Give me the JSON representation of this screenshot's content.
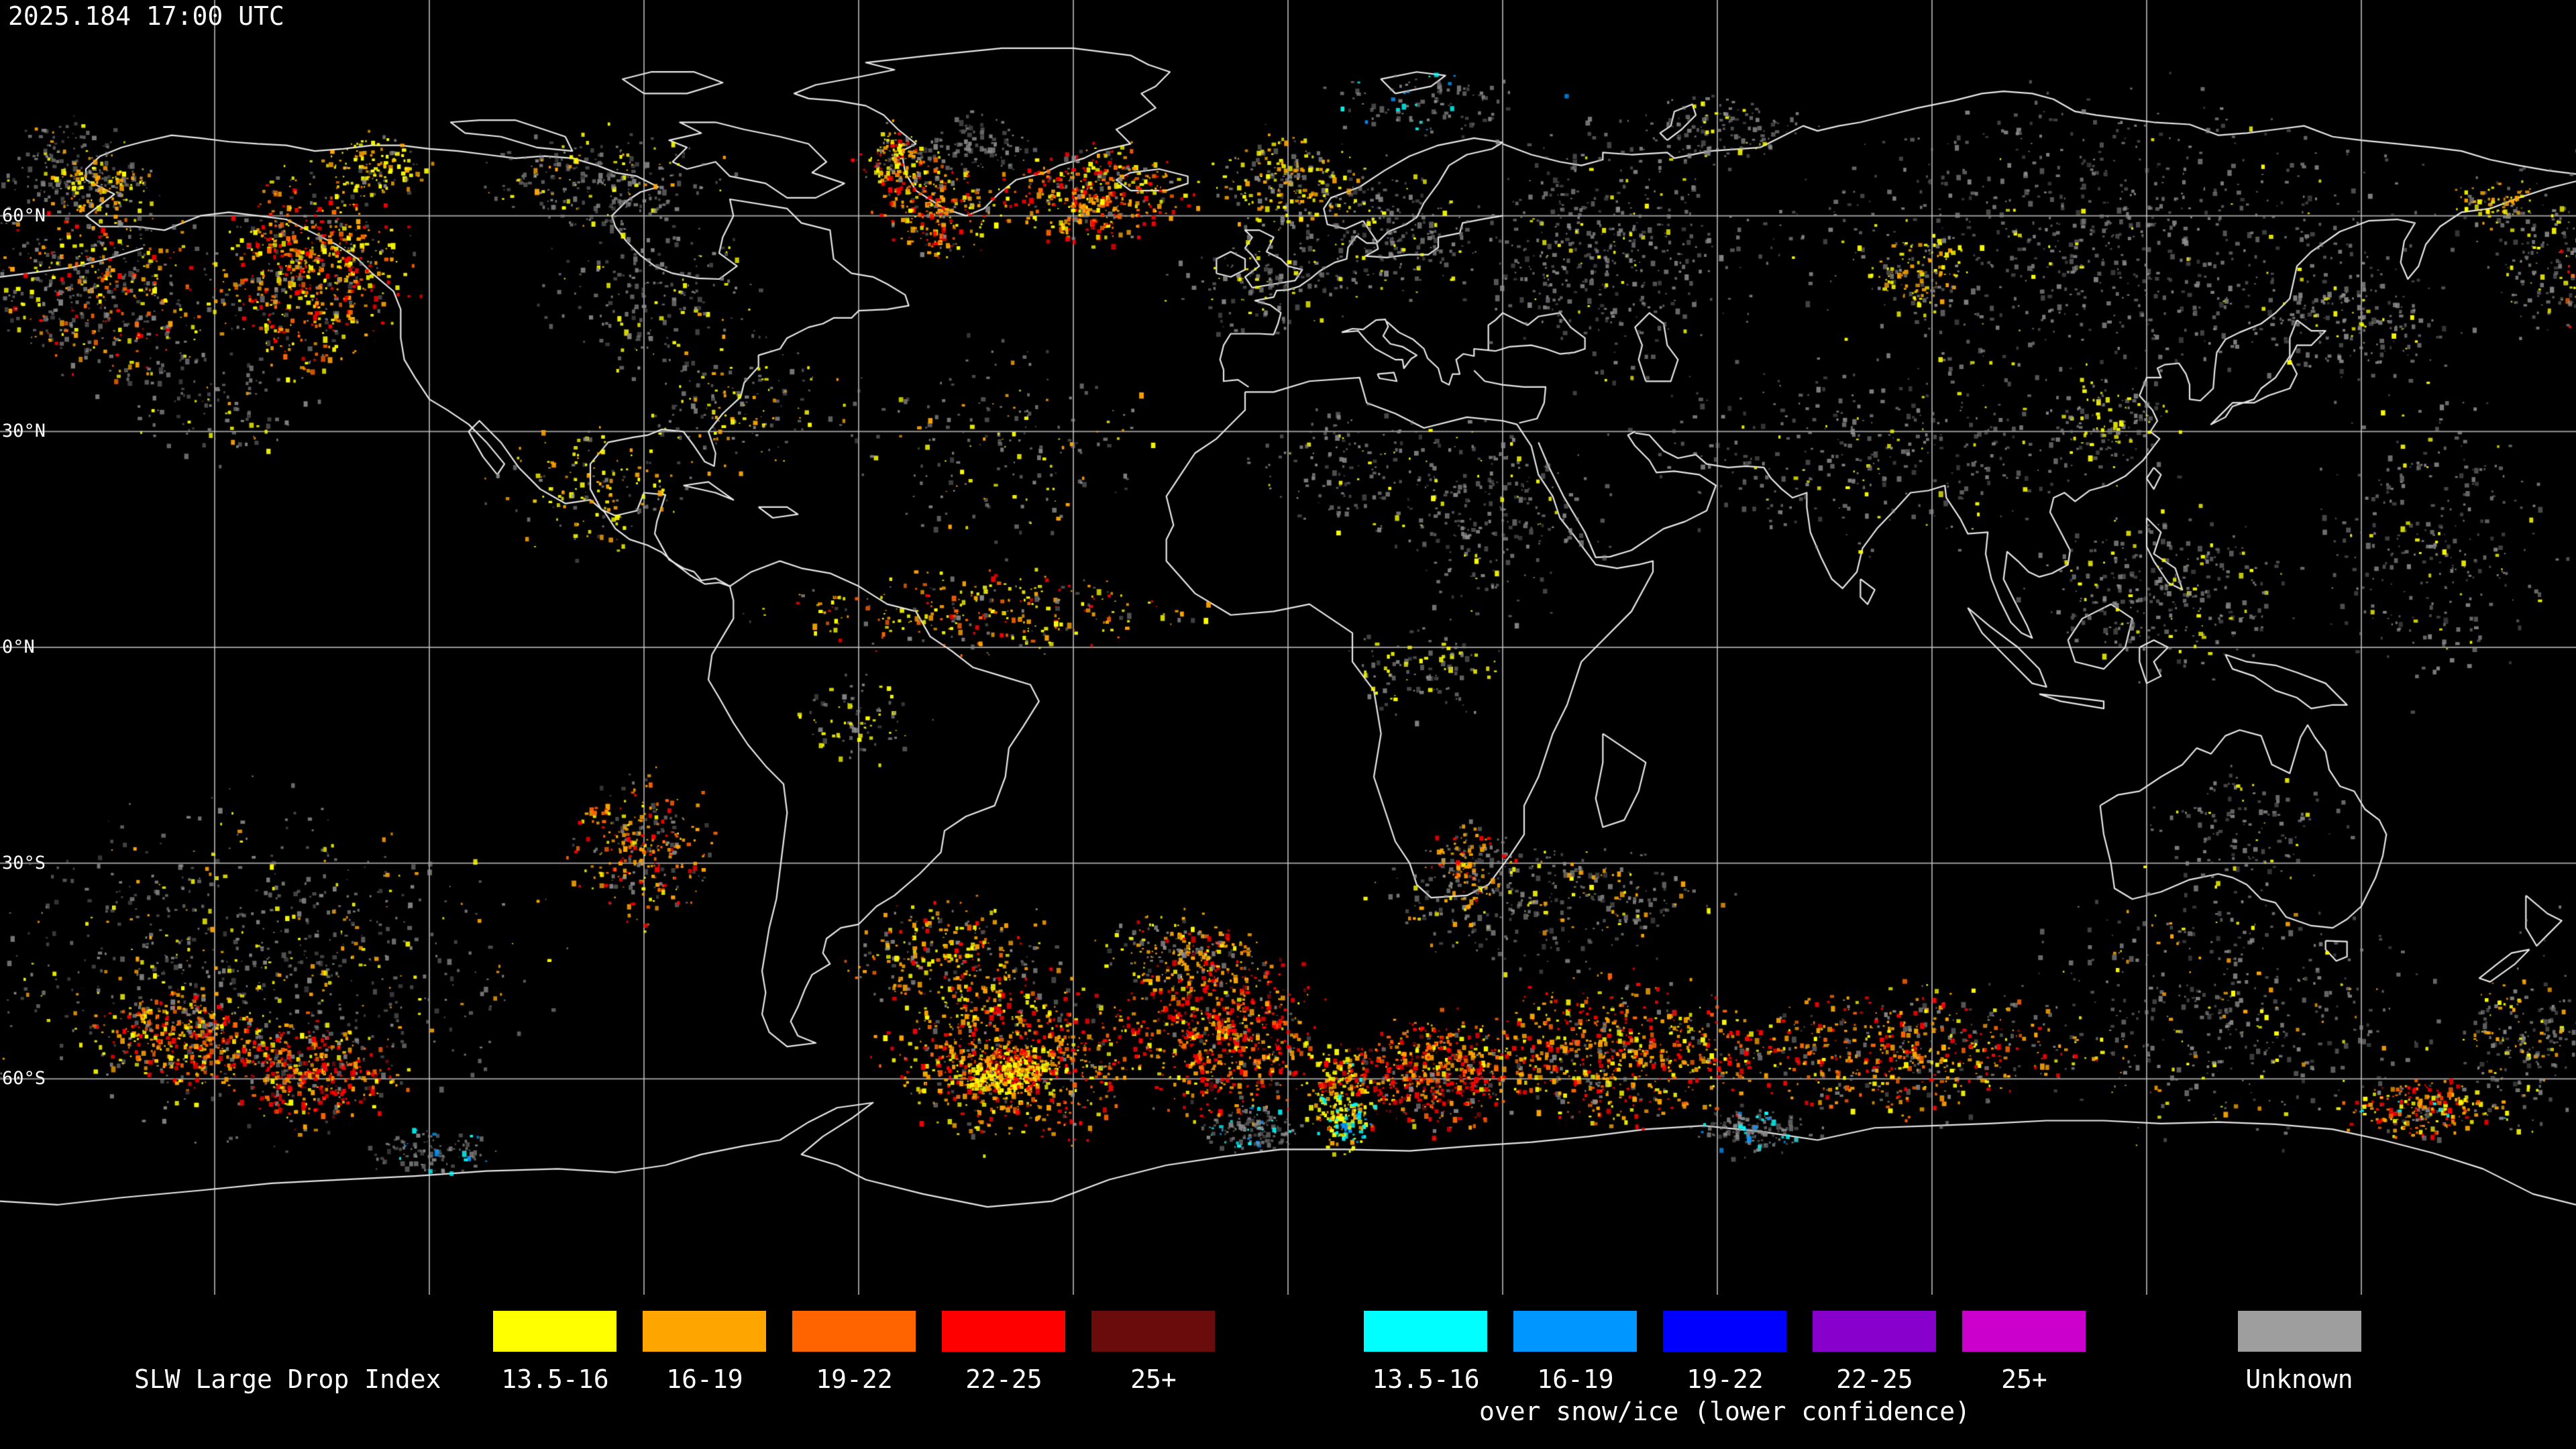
{
  "header": {
    "timestamp": "2025.184 17:00 UTC"
  },
  "map": {
    "background": "#000000",
    "grid": {
      "color": "#c8c8c8",
      "lon_step": 30,
      "lat_step": 30
    },
    "coast_color": "#e8e8e8",
    "lat_labels": [
      {
        "text": "60°N",
        "lat": 60
      },
      {
        "text": "30°N",
        "lat": 30
      },
      {
        "text": "0°N",
        "lat": 0
      },
      {
        "text": "30°S",
        "lat": -30
      },
      {
        "text": "60°S",
        "lat": -60
      }
    ],
    "clusters": [
      {
        "lon": -166,
        "lat": 50,
        "rx": 14,
        "ry": 11,
        "n": 520,
        "mix": {
          "gray": 50,
          "orange": 15,
          "dkorange": 10,
          "red": 10,
          "yellow": 15
        }
      },
      {
        "lon": -137,
        "lat": 53,
        "rx": 12,
        "ry": 12,
        "n": 680,
        "mix": {
          "yellow": 24,
          "orange": 22,
          "dkorange": 14,
          "red": 18,
          "gray": 22
        }
      },
      {
        "lon": -128,
        "lat": 67,
        "rx": 7,
        "ry": 4,
        "n": 130,
        "mix": {
          "yellow": 50,
          "orange": 30,
          "gray": 20
        }
      },
      {
        "lon": -171,
        "lat": 67,
        "rx": 8,
        "ry": 6,
        "n": 140,
        "mix": {
          "gray": 80,
          "yellow": 10,
          "orange": 10
        }
      },
      {
        "lon": -166,
        "lat": 64,
        "rx": 7,
        "ry": 4,
        "n": 150,
        "mix": {
          "orange": 35,
          "yellow": 30,
          "gray": 35
        }
      },
      {
        "lon": -96,
        "lat": 65,
        "rx": 15,
        "ry": 6,
        "n": 260,
        "mix": {
          "gray": 78,
          "yellow": 12,
          "orange": 10
        }
      },
      {
        "lon": -90,
        "lat": 50,
        "rx": 13,
        "ry": 10,
        "n": 200,
        "mix": {
          "gray": 82,
          "yellow": 18
        }
      },
      {
        "lon": -77,
        "lat": 35,
        "rx": 15,
        "ry": 9,
        "n": 170,
        "mix": {
          "gray": 60,
          "yellow": 22,
          "orange": 18
        }
      },
      {
        "lon": -97,
        "lat": 22,
        "rx": 12,
        "ry": 8,
        "n": 170,
        "mix": {
          "yellow": 40,
          "orange": 30,
          "gray": 30
        }
      },
      {
        "lon": -150,
        "lat": 35,
        "rx": 14,
        "ry": 8,
        "n": 130,
        "mix": {
          "gray": 80,
          "yellow": 12,
          "orange": 8
        }
      },
      {
        "lon": -44,
        "lat": 70,
        "rx": 8,
        "ry": 4,
        "n": 100,
        "mix": {
          "gray": 100
        }
      },
      {
        "lon": -55,
        "lat": 68,
        "rx": 5,
        "ry": 4,
        "n": 160,
        "mix": {
          "orange": 30,
          "red": 20,
          "yellow": 20,
          "gray": 30
        }
      },
      {
        "lon": -49,
        "lat": 61,
        "rx": 7,
        "ry": 6,
        "n": 260,
        "mix": {
          "orange": 28,
          "dkorange": 14,
          "red": 24,
          "yellow": 16,
          "gray": 18
        }
      },
      {
        "lon": -27,
        "lat": 63,
        "rx": 11,
        "ry": 6,
        "n": 430,
        "mix": {
          "orange": 25,
          "dkorange": 16,
          "red": 27,
          "yellow": 17,
          "gray": 15
        }
      },
      {
        "lon": 0,
        "lat": 65,
        "rx": 10,
        "ry": 6,
        "n": 230,
        "mix": {
          "orange": 28,
          "yellow": 30,
          "gray": 42
        }
      },
      {
        "lon": -2,
        "lat": 51,
        "rx": 12,
        "ry": 7,
        "n": 150,
        "mix": {
          "gray": 78,
          "yellow": 22
        }
      },
      {
        "lon": 14,
        "lat": 58,
        "rx": 10,
        "ry": 8,
        "n": 220,
        "mix": {
          "gray": 88,
          "yellow": 12
        }
      },
      {
        "lon": 44,
        "lat": 55,
        "rx": 18,
        "ry": 15,
        "n": 480,
        "mix": {
          "gray": 92,
          "yellow": 8
        }
      },
      {
        "lon": 60,
        "lat": 72,
        "rx": 12,
        "ry": 4,
        "n": 140,
        "mix": {
          "gray": 90,
          "yellow": 10
        }
      },
      {
        "lon": 20,
        "lat": 76,
        "rx": 14,
        "ry": 4,
        "n": 110,
        "mix": {
          "gray": 86,
          "blue": 7,
          "cyan": 7
        }
      },
      {
        "lon": 115,
        "lat": 57,
        "rx": 40,
        "ry": 18,
        "n": 820,
        "mix": {
          "gray": 94,
          "yellow": 6
        }
      },
      {
        "lon": 88,
        "lat": 52,
        "rx": 6,
        "ry": 5,
        "n": 110,
        "mix": {
          "yellow": 40,
          "orange": 35,
          "gray": 25
        }
      },
      {
        "lon": 175,
        "lat": 55,
        "rx": 6,
        "ry": 10,
        "n": 140,
        "mix": {
          "gray": 85,
          "yellow": 15
        }
      },
      {
        "lon": 168,
        "lat": 62,
        "rx": 5,
        "ry": 3,
        "n": 80,
        "mix": {
          "orange": 40,
          "yellow": 30,
          "gray": 30
        }
      },
      {
        "lon": 84,
        "lat": 28,
        "rx": 33,
        "ry": 12,
        "n": 400,
        "mix": {
          "gray": 90,
          "yellow": 10
        }
      },
      {
        "lon": 115,
        "lat": 32,
        "rx": 8,
        "ry": 6,
        "n": 120,
        "mix": {
          "gray": 70,
          "yellow": 30
        }
      },
      {
        "lon": 28,
        "lat": 18,
        "rx": 14,
        "ry": 11,
        "n": 270,
        "mix": {
          "gray": 90,
          "yellow": 10
        }
      },
      {
        "lon": 8,
        "lat": 25,
        "rx": 12,
        "ry": 8,
        "n": 140,
        "mix": {
          "gray": 85,
          "yellow": 15
        }
      },
      {
        "lon": -40,
        "lat": 28,
        "rx": 18,
        "ry": 13,
        "n": 190,
        "mix": {
          "gray": 72,
          "yellow": 16,
          "orange": 12
        }
      },
      {
        "lon": -43,
        "lat": 5,
        "rx": 26,
        "ry": 5,
        "n": 300,
        "mix": {
          "orange": 25,
          "dkorange": 12,
          "yellow": 28,
          "red": 12,
          "gray": 23
        }
      },
      {
        "lon": 122,
        "lat": 8,
        "rx": 16,
        "ry": 10,
        "n": 320,
        "mix": {
          "gray": 85,
          "yellow": 15
        }
      },
      {
        "lon": 160,
        "lat": 15,
        "rx": 15,
        "ry": 18,
        "n": 300,
        "mix": {
          "gray": 88,
          "yellow": 12
        }
      },
      {
        "lon": 150,
        "lat": 45,
        "rx": 12,
        "ry": 8,
        "n": 190,
        "mix": {
          "gray": 88,
          "yellow": 12
        }
      },
      {
        "lon": 18,
        "lat": -3,
        "rx": 10,
        "ry": 6,
        "n": 110,
        "mix": {
          "gray": 78,
          "yellow": 22
        }
      },
      {
        "lon": -60,
        "lat": -10,
        "rx": 8,
        "ry": 5,
        "n": 90,
        "mix": {
          "gray": 60,
          "yellow": 40
        }
      },
      {
        "lon": -91,
        "lat": -28,
        "rx": 9,
        "ry": 9,
        "n": 300,
        "mix": {
          "orange": 35,
          "dkorange": 15,
          "red": 18,
          "gray": 22,
          "yellow": 10
        }
      },
      {
        "lon": -145,
        "lat": -44,
        "rx": 34,
        "ry": 20,
        "n": 820,
        "mix": {
          "gray": 78,
          "orange": 10,
          "yellow": 12
        }
      },
      {
        "lon": -155,
        "lat": -54,
        "rx": 11,
        "ry": 6,
        "n": 360,
        "mix": {
          "orange": 28,
          "dkorange": 14,
          "red": 28,
          "yellow": 18,
          "gray": 12
        }
      },
      {
        "lon": -137,
        "lat": -59,
        "rx": 11,
        "ry": 6,
        "n": 400,
        "mix": {
          "red": 38,
          "dkred": 6,
          "dkorange": 12,
          "orange": 26,
          "yellow": 8,
          "gray": 10
        }
      },
      {
        "lon": -47,
        "lat": -43,
        "rx": 13,
        "ry": 7,
        "n": 300,
        "mix": {
          "orange": 30,
          "dkorange": 10,
          "gray": 30,
          "red": 15,
          "yellow": 15
        }
      },
      {
        "lon": -38,
        "lat": -57,
        "rx": 16,
        "ry": 10,
        "n": 780,
        "mix": {
          "orange": 26,
          "dkorange": 16,
          "red": 26,
          "yellow": 22,
          "gray": 10
        }
      },
      {
        "lon": -39,
        "lat": -59,
        "rx": 7,
        "ry": 3,
        "n": 280,
        "mix": {
          "yellow": 55,
          "orange": 28,
          "red": 17
        }
      },
      {
        "lon": -9,
        "lat": -53,
        "rx": 12,
        "ry": 11,
        "n": 700,
        "mix": {
          "red": 34,
          "dkred": 6,
          "dkorange": 14,
          "orange": 26,
          "gray": 10,
          "yellow": 10
        }
      },
      {
        "lon": 7,
        "lat": -62,
        "rx": 4,
        "ry": 7,
        "n": 220,
        "mix": {
          "yellow": 48,
          "orange": 30,
          "red": 16,
          "cyan": 6
        }
      },
      {
        "lon": 20,
        "lat": -59,
        "rx": 11,
        "ry": 7,
        "n": 520,
        "mix": {
          "red": 36,
          "dkred": 10,
          "orange": 24,
          "dkorange": 12,
          "gray": 10,
          "yellow": 8
        }
      },
      {
        "lon": -15,
        "lat": -42,
        "rx": 10,
        "ry": 5,
        "n": 200,
        "mix": {
          "orange": 38,
          "gray": 34,
          "yellow": 16,
          "red": 12
        }
      },
      {
        "lon": 35,
        "lat": -35,
        "rx": 20,
        "ry": 8,
        "n": 360,
        "mix": {
          "gray": 78,
          "orange": 12,
          "yellow": 10
        }
      },
      {
        "lon": 25,
        "lat": -30,
        "rx": 5,
        "ry": 5,
        "n": 130,
        "mix": {
          "orange": 40,
          "gray": 38,
          "red": 22
        }
      },
      {
        "lon": 46,
        "lat": -56,
        "rx": 18,
        "ry": 9,
        "n": 680,
        "mix": {
          "orange": 28,
          "dkorange": 14,
          "red": 24,
          "gray": 18,
          "yellow": 16
        }
      },
      {
        "lon": 86,
        "lat": -56,
        "rx": 22,
        "ry": 8,
        "n": 580,
        "mix": {
          "orange": 28,
          "dkorange": 12,
          "gray": 28,
          "red": 18,
          "yellow": 14
        }
      },
      {
        "lon": 130,
        "lat": -50,
        "rx": 25,
        "ry": 16,
        "n": 460,
        "mix": {
          "gray": 84,
          "yellow": 8,
          "orange": 8
        }
      },
      {
        "lon": 134,
        "lat": -25,
        "rx": 12,
        "ry": 8,
        "n": 130,
        "mix": {
          "gray": 88,
          "yellow": 12
        }
      },
      {
        "lon": 158,
        "lat": -64,
        "rx": 10,
        "ry": 4,
        "n": 240,
        "mix": {
          "orange": 32,
          "dkorange": 12,
          "red": 22,
          "yellow": 16,
          "gray": 12,
          "cyan": 6
        }
      },
      {
        "lon": 172,
        "lat": -55,
        "rx": 8,
        "ry": 10,
        "n": 200,
        "mix": {
          "gray": 70,
          "orange": 18,
          "yellow": 12
        }
      },
      {
        "lon": -6,
        "lat": -67,
        "rx": 6,
        "ry": 3,
        "n": 140,
        "mix": {
          "gray": 82,
          "cyan": 10,
          "blue": 8
        }
      },
      {
        "lon": 65,
        "lat": -67,
        "rx": 8,
        "ry": 3,
        "n": 150,
        "mix": {
          "gray": 86,
          "cyan": 8,
          "blue": 6
        }
      },
      {
        "lon": -120,
        "lat": -70,
        "rx": 8,
        "ry": 3,
        "n": 110,
        "mix": {
          "gray": 85,
          "cyan": 8,
          "blue": 7
        }
      },
      {
        "lon": 9,
        "lat": -66,
        "rx": 3,
        "ry": 3,
        "n": 50,
        "mix": {
          "cyan": 45,
          "blue": 35,
          "yellow": 20
        }
      }
    ]
  },
  "palette": {
    "yellow": "#ffff00",
    "orange": "#ffa500",
    "dkorange": "#ff6400",
    "red": "#ff0000",
    "dkred": "#6b0c0c",
    "cyan": "#00ffff",
    "blue": "#0096ff",
    "dkblue": "#0000ff",
    "purple": "#8800cc",
    "magenta": "#cc00cc",
    "gray": "#909090"
  },
  "legend": {
    "slw": {
      "title": "SLW Large Drop Index",
      "bins": [
        {
          "label": "13.5-16",
          "color": "#ffff00"
        },
        {
          "label": "16-19",
          "color": "#ffa500"
        },
        {
          "label": "19-22",
          "color": "#ff6400"
        },
        {
          "label": "22-25",
          "color": "#ff0000"
        },
        {
          "label": "25+",
          "color": "#6b0c0c"
        }
      ]
    },
    "snow": {
      "caption": "over snow/ice (lower confidence)",
      "bins": [
        {
          "label": "13.5-16",
          "color": "#00ffff"
        },
        {
          "label": "16-19",
          "color": "#0096ff"
        },
        {
          "label": "19-22",
          "color": "#0000ff"
        },
        {
          "label": "22-25",
          "color": "#8800cc"
        },
        {
          "label": "25+",
          "color": "#cc00cc"
        }
      ]
    },
    "unknown": {
      "label": "Unknown",
      "color": "#9e9e9e"
    }
  }
}
